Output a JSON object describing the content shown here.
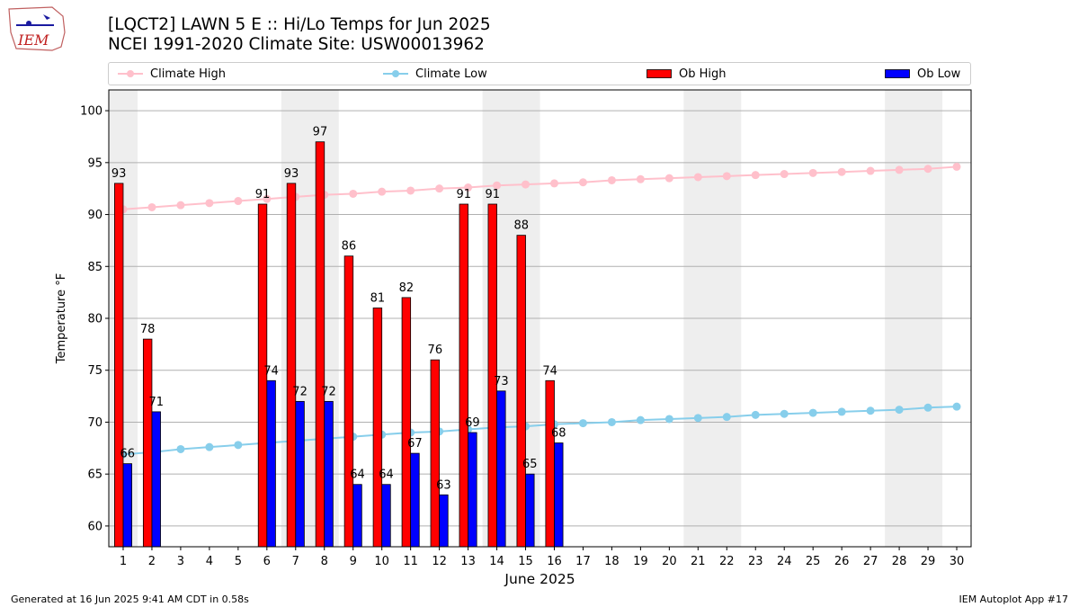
{
  "header": {
    "title_line1": "[LQCT2] LAWN 5 E :: Hi/Lo Temps for Jun 2025",
    "title_line2": "NCEI 1991-2020 Climate Site: USW00013962",
    "logo_text": "IEM"
  },
  "footer": {
    "generated": "Generated at 16 Jun 2025 9:41 AM CDT in 0.58s",
    "app": "IEM Autoplot App #17"
  },
  "colors": {
    "ob_high": "#ff0000",
    "ob_low": "#0000ff",
    "climate_high": "#ffc0cb",
    "climate_low": "#87ceeb",
    "weekend_shade": "#eeeeee",
    "grid": "#b0b0b0"
  },
  "chart_data": {
    "type": "bar",
    "xlabel": "June 2025",
    "ylabel": "Temperature °F",
    "ylim": [
      58,
      102
    ],
    "yticks": [
      60,
      65,
      70,
      75,
      80,
      85,
      90,
      95,
      100
    ],
    "xlim": [
      0.5,
      30.5
    ],
    "days": [
      1,
      2,
      3,
      4,
      5,
      6,
      7,
      8,
      9,
      10,
      11,
      12,
      13,
      14,
      15,
      16,
      17,
      18,
      19,
      20,
      21,
      22,
      23,
      24,
      25,
      26,
      27,
      28,
      29,
      30
    ],
    "grid": "horizontal",
    "legend_position": "top",
    "shaded_weekends": [
      [
        1,
        1
      ],
      [
        7,
        8
      ],
      [
        14,
        15
      ],
      [
        21,
        22
      ],
      [
        28,
        29
      ]
    ],
    "series": [
      {
        "name": "Climate High",
        "kind": "line",
        "values": [
          90.5,
          90.7,
          90.9,
          91.1,
          91.3,
          91.5,
          91.7,
          91.9,
          92.0,
          92.2,
          92.3,
          92.5,
          92.6,
          92.8,
          92.9,
          93.0,
          93.1,
          93.3,
          93.4,
          93.5,
          93.6,
          93.7,
          93.8,
          93.9,
          94.0,
          94.1,
          94.2,
          94.3,
          94.4,
          94.6
        ]
      },
      {
        "name": "Climate Low",
        "kind": "line",
        "values": [
          66.9,
          67.1,
          67.4,
          67.6,
          67.8,
          68.0,
          68.2,
          68.4,
          68.6,
          68.8,
          69.0,
          69.1,
          69.3,
          69.5,
          69.6,
          69.8,
          69.9,
          70.0,
          70.2,
          70.3,
          70.4,
          70.5,
          70.7,
          70.8,
          70.9,
          71.0,
          71.1,
          71.2,
          71.4,
          71.5
        ]
      },
      {
        "name": "Ob High",
        "kind": "bar",
        "days": [
          1,
          2,
          6,
          7,
          8,
          9,
          10,
          11,
          12,
          13,
          14,
          15,
          16
        ],
        "values": [
          93,
          78,
          91,
          93,
          97,
          86,
          81,
          82,
          76,
          91,
          91,
          88,
          74
        ]
      },
      {
        "name": "Ob Low",
        "kind": "bar",
        "days": [
          1,
          2,
          6,
          7,
          8,
          9,
          10,
          11,
          12,
          13,
          14,
          15,
          16
        ],
        "values": [
          66,
          71,
          74,
          72,
          72,
          64,
          64,
          67,
          63,
          69,
          73,
          65,
          68
        ]
      }
    ]
  }
}
